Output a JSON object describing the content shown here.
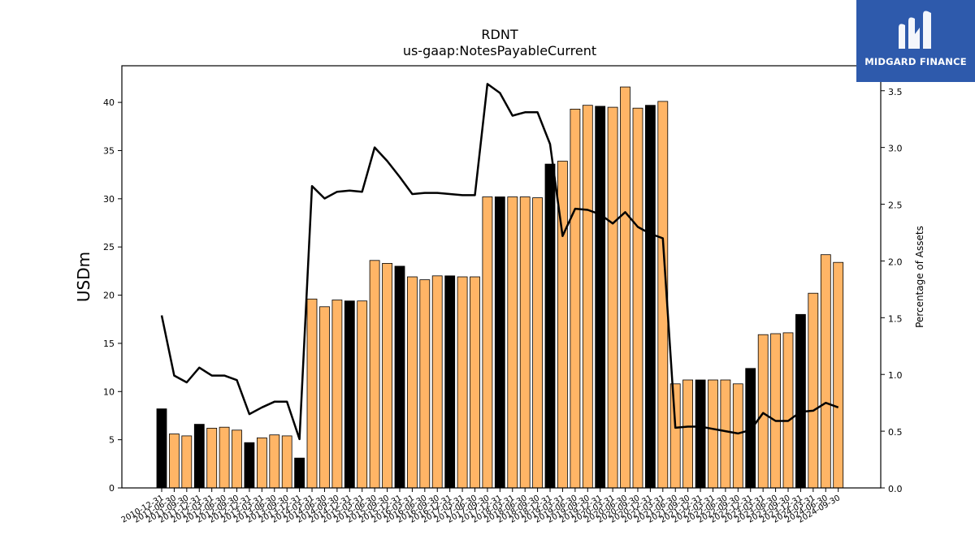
{
  "chart_data": {
    "type": "bar",
    "title": "RDNT",
    "subtitle": "us-gaap:NotesPayableCurrent",
    "ylabel": "USDm",
    "ylabel_right": "Percentage of Assets",
    "ylim": [
      0,
      43.8
    ],
    "ylim_right": [
      0,
      3.72
    ],
    "yticks": [
      "0",
      "5",
      "10",
      "15",
      "20",
      "25",
      "30",
      "35",
      "40"
    ],
    "yticks_right": [
      "0.0",
      "0.5",
      "1.0",
      "1.5",
      "2.0",
      "2.5",
      "3.0",
      "3.5"
    ],
    "categories": [
      "2010-12-31",
      "2011-06-30",
      "2011-09-30",
      "2011-12-31",
      "2012-03-31",
      "2012-06-30",
      "2012-09-30",
      "2012-12-31",
      "2013-03-31",
      "2013-06-30",
      "2013-09-30",
      "2013-12-31",
      "2014-03-31",
      "2014-06-30",
      "2014-09-30",
      "2014-12-31",
      "2015-03-31",
      "2015-06-30",
      "2015-09-30",
      "2015-12-31",
      "2016-03-31",
      "2016-06-30",
      "2016-09-30",
      "2016-12-31",
      "2017-03-31",
      "2017-06-30",
      "2017-09-30",
      "2017-12-31",
      "2018-03-31",
      "2018-06-30",
      "2018-09-30",
      "2018-12-31",
      "2019-03-31",
      "2019-06-30",
      "2019-09-30",
      "2019-12-31",
      "2020-03-31",
      "2020-06-30",
      "2020-09-30",
      "2020-12-31",
      "2021-03-31",
      "2021-06-30",
      "2021-09-30",
      "2021-12-31",
      "2022-03-31",
      "2022-06-30",
      "2022-09-30",
      "2022-12-31",
      "2023-03-31",
      "2023-06-30",
      "2023-09-30",
      "2023-12-31",
      "2024-03-31",
      "2024-06-30",
      "2024-09-30"
    ],
    "series": [
      {
        "type": "bar",
        "values": [
          8.2,
          5.6,
          5.4,
          6.6,
          6.2,
          6.3,
          6.0,
          4.7,
          5.2,
          5.5,
          5.4,
          3.1,
          19.6,
          18.8,
          19.5,
          19.4,
          19.4,
          23.6,
          23.3,
          23.0,
          21.9,
          21.6,
          22.0,
          22.0,
          21.9,
          21.9,
          30.2,
          30.2,
          30.2,
          30.2,
          30.1,
          33.6,
          33.9,
          39.3,
          39.7,
          39.6,
          39.5,
          41.6,
          39.4,
          39.7,
          40.1,
          10.8,
          11.2,
          11.2,
          11.2,
          11.2,
          10.8,
          12.4,
          15.9,
          16.0,
          16.1,
          18.0,
          20.2,
          24.2,
          23.4
        ],
        "highlight": [
          true,
          false,
          false,
          true,
          false,
          false,
          false,
          true,
          false,
          false,
          false,
          true,
          false,
          false,
          false,
          true,
          false,
          false,
          false,
          true,
          false,
          false,
          false,
          true,
          false,
          false,
          false,
          true,
          false,
          false,
          false,
          true,
          false,
          false,
          false,
          true,
          false,
          false,
          false,
          true,
          false,
          false,
          false,
          true,
          false,
          false,
          false,
          true,
          false,
          false,
          false,
          true,
          false,
          false,
          false
        ]
      },
      {
        "type": "line",
        "axis": "right",
        "values": [
          1.52,
          0.99,
          0.93,
          1.06,
          0.99,
          0.99,
          0.95,
          0.65,
          0.71,
          0.76,
          0.76,
          0.43,
          2.66,
          2.55,
          2.61,
          2.62,
          2.61,
          3.0,
          2.88,
          2.74,
          2.59,
          2.6,
          2.6,
          2.59,
          2.58,
          2.58,
          3.56,
          3.48,
          3.28,
          3.31,
          3.31,
          3.03,
          2.22,
          2.46,
          2.45,
          2.41,
          2.33,
          2.43,
          2.3,
          2.24,
          2.2,
          0.53,
          0.54,
          0.54,
          0.52,
          0.5,
          0.48,
          0.51,
          0.66,
          0.59,
          0.59,
          0.67,
          0.68,
          0.75,
          0.71
        ]
      }
    ],
    "colors": {
      "bar": "#ffb566",
      "bar_highlight": "#000000",
      "line": "#000000",
      "edge": "#000000"
    },
    "grid": false
  },
  "logo": {
    "text": "MIDGARD FINANCE"
  }
}
